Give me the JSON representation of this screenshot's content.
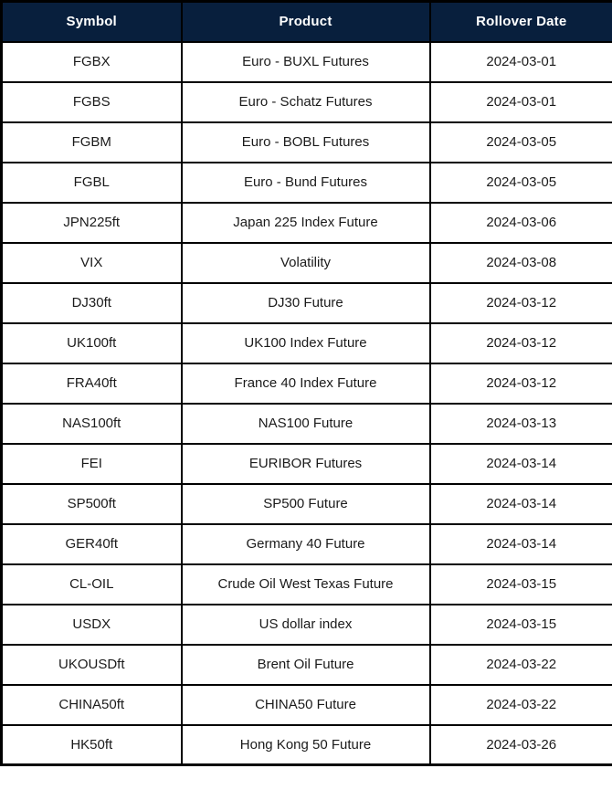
{
  "table": {
    "columns": [
      "Symbol",
      "Product",
      "Rollover Date"
    ],
    "rows": [
      {
        "symbol": "FGBX",
        "product": "Euro - BUXL Futures",
        "rollover_date": "2024-03-01"
      },
      {
        "symbol": "FGBS",
        "product": "Euro - Schatz Futures",
        "rollover_date": "2024-03-01"
      },
      {
        "symbol": "FGBM",
        "product": "Euro - BOBL Futures",
        "rollover_date": "2024-03-05"
      },
      {
        "symbol": "FGBL",
        "product": "Euro - Bund Futures",
        "rollover_date": "2024-03-05"
      },
      {
        "symbol": "JPN225ft",
        "product": "Japan 225 Index Future",
        "rollover_date": "2024-03-06"
      },
      {
        "symbol": "VIX",
        "product": "Volatility",
        "rollover_date": "2024-03-08"
      },
      {
        "symbol": "DJ30ft",
        "product": "DJ30 Future",
        "rollover_date": "2024-03-12"
      },
      {
        "symbol": "UK100ft",
        "product": "UK100 Index Future",
        "rollover_date": "2024-03-12"
      },
      {
        "symbol": "FRA40ft",
        "product": "France 40 Index Future",
        "rollover_date": "2024-03-12"
      },
      {
        "symbol": "NAS100ft",
        "product": "NAS100 Future",
        "rollover_date": "2024-03-13"
      },
      {
        "symbol": "FEI",
        "product": "EURIBOR Futures",
        "rollover_date": "2024-03-14"
      },
      {
        "symbol": "SP500ft",
        "product": "SP500 Future",
        "rollover_date": "2024-03-14"
      },
      {
        "symbol": "GER40ft",
        "product": "Germany 40 Future",
        "rollover_date": "2024-03-14"
      },
      {
        "symbol": "CL-OIL",
        "product": "Crude Oil West Texas Future",
        "rollover_date": "2024-03-15"
      },
      {
        "symbol": "USDX",
        "product": "US dollar index",
        "rollover_date": "2024-03-15"
      },
      {
        "symbol": "UKOUSDft",
        "product": "Brent Oil Future",
        "rollover_date": "2024-03-22"
      },
      {
        "symbol": "CHINA50ft",
        "product": "CHINA50 Future",
        "rollover_date": "2024-03-22"
      },
      {
        "symbol": "HK50ft",
        "product": "Hong Kong 50 Future",
        "rollover_date": "2024-03-26"
      }
    ]
  },
  "colors": {
    "header_bg": "#081f3d",
    "header_text": "#ffffff",
    "row_bg": "#ffffff",
    "border": "#000000",
    "cell_text": "#1b1b1b"
  }
}
